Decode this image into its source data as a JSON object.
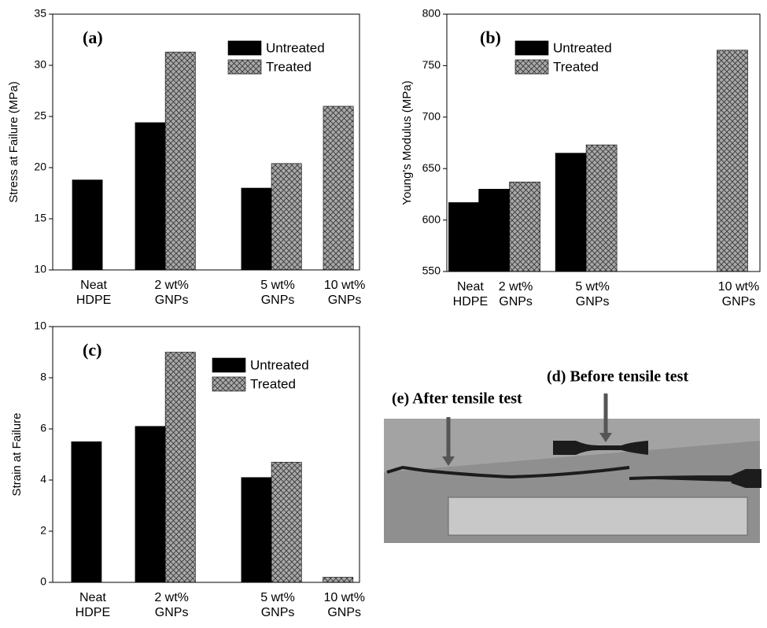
{
  "chart_data": [
    {
      "type": "bar",
      "panel_label": "(a)",
      "ylabel": "Stress at Failure (MPa)",
      "categories": [
        [
          "Neat",
          "HDPE"
        ],
        [
          "2 wt%",
          "GNPs"
        ],
        [
          "5 wt%",
          "GNPs"
        ],
        [
          "10 wt%",
          "GNPs"
        ]
      ],
      "series": [
        {
          "name": "Untreated",
          "color": "#000000",
          "hatch": false,
          "values": [
            18.8,
            24.4,
            18.0,
            null
          ]
        },
        {
          "name": "Treated",
          "color": "#a8a8a8",
          "hatch": true,
          "values": [
            null,
            31.3,
            20.4,
            26.0
          ]
        }
      ],
      "ylim": [
        10,
        35
      ],
      "yticks": [
        10,
        15,
        20,
        25,
        30,
        35
      ],
      "grid": false,
      "legend": "top-center"
    },
    {
      "type": "bar",
      "panel_label": "(b)",
      "ylabel": "Young's Modulus (MPa)",
      "categories": [
        [
          "Neat",
          "HDPE"
        ],
        [
          "2 wt%",
          "GNPs"
        ],
        [
          "5 wt%",
          "GNPs"
        ],
        [
          "10 wt%",
          "GNPs"
        ]
      ],
      "series": [
        {
          "name": "Untreated",
          "color": "#000000",
          "hatch": false,
          "values": [
            617,
            630,
            665,
            null
          ]
        },
        {
          "name": "Treated",
          "color": "#a8a8a8",
          "hatch": true,
          "values": [
            null,
            637,
            673,
            765
          ]
        }
      ],
      "ylim": [
        550,
        800
      ],
      "yticks": [
        550,
        600,
        650,
        700,
        750,
        800
      ],
      "grid": false,
      "legend": "top-center"
    },
    {
      "type": "bar",
      "panel_label": "(c)",
      "ylabel": "Strain at Failure",
      "categories": [
        [
          "Neat",
          "HDPE"
        ],
        [
          "2 wt%",
          "GNPs"
        ],
        [
          "5 wt%",
          "GNPs"
        ],
        [
          "10 wt%",
          "GNPs"
        ]
      ],
      "series": [
        {
          "name": "Untreated",
          "color": "#000000",
          "hatch": false,
          "values": [
            5.5,
            6.1,
            4.1,
            null
          ]
        },
        {
          "name": "Treated",
          "color": "#a8a8a8",
          "hatch": true,
          "values": [
            null,
            9.0,
            4.7,
            0.2
          ]
        }
      ],
      "ylim": [
        0,
        10
      ],
      "yticks": [
        0,
        2,
        4,
        6,
        8,
        10
      ],
      "grid": false,
      "legend": "top-center"
    }
  ],
  "photo": {
    "labels": [
      "(d) Before  tensile test",
      "(e) After tensile test"
    ]
  }
}
